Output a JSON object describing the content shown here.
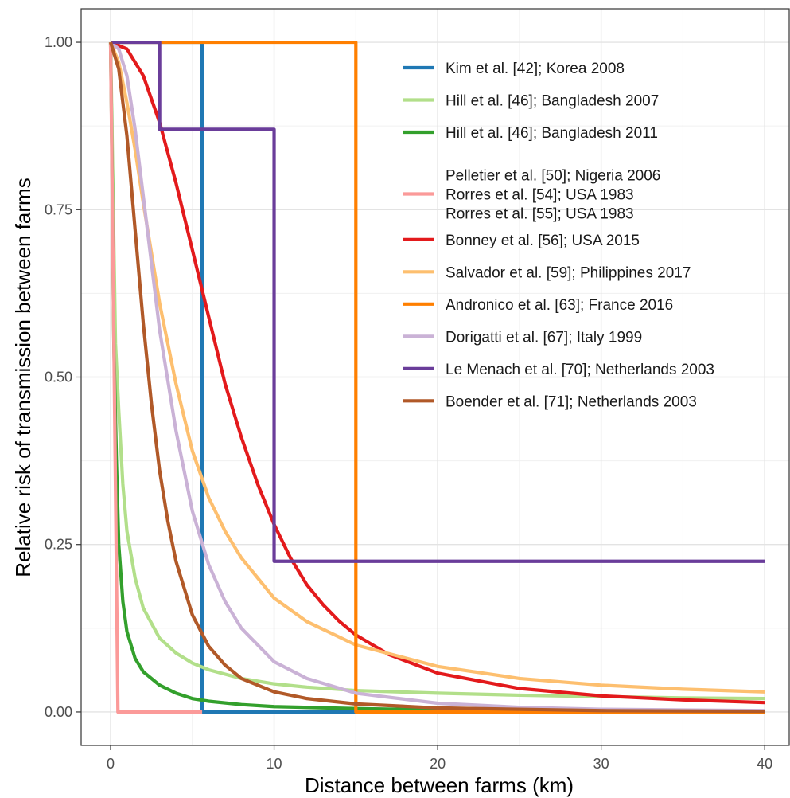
{
  "chart_data": {
    "type": "line",
    "title": "",
    "xlabel": "Distance between farms (km)",
    "ylabel": "Relative risk of transmission between farms",
    "xlim": [
      -1.8,
      41.5
    ],
    "ylim": [
      -0.05,
      1.05
    ],
    "x_ticks": [
      0,
      10,
      20,
      30,
      40
    ],
    "x_tick_labels": [
      "0",
      "10",
      "20",
      "30",
      "40"
    ],
    "y_ticks": [
      0,
      0.25,
      0.5,
      0.75,
      1.0
    ],
    "y_tick_labels": [
      "0.00",
      "0.25",
      "0.50",
      "0.75",
      "1.00"
    ],
    "x_minor_ticks": [
      5,
      15,
      25,
      35
    ],
    "y_minor_ticks": [
      0.125,
      0.375,
      0.625,
      0.875
    ],
    "grid": true,
    "legend_position": "top-right",
    "series": [
      {
        "name": "Kim et al. [42]; Korea 2008",
        "color": "#1f78b4",
        "points": [
          [
            0,
            1
          ],
          [
            5.6,
            1
          ],
          [
            5.6,
            0
          ],
          [
            40,
            0
          ]
        ]
      },
      {
        "name": "Hill et al. [46]; Bangladesh 2007",
        "color": "#b2df8a",
        "points": [
          [
            0,
            1
          ],
          [
            0.3,
            0.55
          ],
          [
            0.5,
            0.45
          ],
          [
            0.75,
            0.34
          ],
          [
            1,
            0.27
          ],
          [
            1.5,
            0.2
          ],
          [
            2,
            0.155
          ],
          [
            3,
            0.11
          ],
          [
            4,
            0.088
          ],
          [
            5,
            0.073
          ],
          [
            6,
            0.063
          ],
          [
            8,
            0.05
          ],
          [
            10,
            0.042
          ],
          [
            12,
            0.037
          ],
          [
            15,
            0.032
          ],
          [
            20,
            0.028
          ],
          [
            25,
            0.025
          ],
          [
            30,
            0.023
          ],
          [
            35,
            0.021
          ],
          [
            40,
            0.02
          ]
        ]
      },
      {
        "name": "Hill et al. [46]; Bangladesh 2011",
        "color": "#33a02c",
        "points": [
          [
            0,
            1
          ],
          [
            0.1,
            0.8
          ],
          [
            0.2,
            0.55
          ],
          [
            0.35,
            0.38
          ],
          [
            0.5,
            0.25
          ],
          [
            0.75,
            0.165
          ],
          [
            1,
            0.12
          ],
          [
            1.5,
            0.08
          ],
          [
            2,
            0.06
          ],
          [
            3,
            0.04
          ],
          [
            4,
            0.028
          ],
          [
            5,
            0.02
          ],
          [
            6,
            0.016
          ],
          [
            8,
            0.011
          ],
          [
            10,
            0.008
          ],
          [
            15,
            0.005
          ],
          [
            20,
            0.003
          ],
          [
            30,
            0.002
          ],
          [
            40,
            0.001
          ]
        ]
      },
      {
        "name": "Pelletier et al. [50]; Nigeria 2006",
        "name_line2": "Rorres et al. [54]; USA 1983",
        "name_line3": "Rorres et al. [55]; USA 1983",
        "color": "#fb9a99",
        "points": [
          [
            0,
            1
          ],
          [
            0.45,
            0
          ],
          [
            5.6,
            0
          ]
        ]
      },
      {
        "name": "Bonney et al. [56]; USA 2015",
        "color": "#e31a1c",
        "points": [
          [
            0,
            1
          ],
          [
            1,
            0.99
          ],
          [
            2,
            0.95
          ],
          [
            3,
            0.88
          ],
          [
            4,
            0.79
          ],
          [
            5,
            0.69
          ],
          [
            6,
            0.59
          ],
          [
            7,
            0.49
          ],
          [
            8,
            0.41
          ],
          [
            9,
            0.34
          ],
          [
            10,
            0.28
          ],
          [
            11,
            0.23
          ],
          [
            12,
            0.19
          ],
          [
            13,
            0.16
          ],
          [
            14,
            0.135
          ],
          [
            15,
            0.115
          ],
          [
            17,
            0.086
          ],
          [
            20,
            0.058
          ],
          [
            25,
            0.035
          ],
          [
            30,
            0.024
          ],
          [
            35,
            0.018
          ],
          [
            40,
            0.014
          ]
        ]
      },
      {
        "name": "Salvador et al. [59]; Philippines 2017",
        "color": "#fdbf6f",
        "points": [
          [
            0,
            1
          ],
          [
            0.5,
            0.97
          ],
          [
            1,
            0.91
          ],
          [
            1.5,
            0.84
          ],
          [
            2,
            0.76
          ],
          [
            3,
            0.61
          ],
          [
            4,
            0.49
          ],
          [
            5,
            0.39
          ],
          [
            6,
            0.32
          ],
          [
            7,
            0.27
          ],
          [
            8,
            0.23
          ],
          [
            10,
            0.17
          ],
          [
            12,
            0.135
          ],
          [
            15,
            0.1
          ],
          [
            20,
            0.068
          ],
          [
            25,
            0.05
          ],
          [
            30,
            0.04
          ],
          [
            35,
            0.034
          ],
          [
            40,
            0.03
          ]
        ]
      },
      {
        "name": "Andronico et al. [63]; France 2016",
        "color": "#ff7f00",
        "points": [
          [
            0,
            1
          ],
          [
            15,
            1
          ],
          [
            15,
            0
          ],
          [
            40,
            0
          ]
        ]
      },
      {
        "name": "Dorigatti et al. [67]; Italy 1999",
        "color": "#cab2d6",
        "points": [
          [
            0,
            1
          ],
          [
            0.5,
            0.99
          ],
          [
            1,
            0.95
          ],
          [
            1.5,
            0.87
          ],
          [
            2,
            0.77
          ],
          [
            2.5,
            0.67
          ],
          [
            3,
            0.57
          ],
          [
            4,
            0.42
          ],
          [
            5,
            0.3
          ],
          [
            6,
            0.22
          ],
          [
            7,
            0.165
          ],
          [
            8,
            0.125
          ],
          [
            10,
            0.075
          ],
          [
            12,
            0.05
          ],
          [
            15,
            0.028
          ],
          [
            20,
            0.013
          ],
          [
            25,
            0.007
          ],
          [
            30,
            0.004
          ],
          [
            40,
            0.002
          ]
        ]
      },
      {
        "name": "Le Menach et al. [70]; Netherlands 2003",
        "color": "#6a3d9a",
        "points": [
          [
            0,
            1
          ],
          [
            3,
            1
          ],
          [
            3,
            0.87
          ],
          [
            10,
            0.87
          ],
          [
            10,
            0.225
          ],
          [
            40,
            0.225
          ]
        ]
      },
      {
        "name": "Boender et al. [71]; Netherlands 2003",
        "color": "#b15928",
        "points": [
          [
            0,
            1
          ],
          [
            0.5,
            0.96
          ],
          [
            1,
            0.86
          ],
          [
            1.5,
            0.72
          ],
          [
            2,
            0.58
          ],
          [
            2.5,
            0.46
          ],
          [
            3,
            0.36
          ],
          [
            3.5,
            0.285
          ],
          [
            4,
            0.225
          ],
          [
            5,
            0.145
          ],
          [
            6,
            0.098
          ],
          [
            7,
            0.07
          ],
          [
            8,
            0.05
          ],
          [
            10,
            0.03
          ],
          [
            12,
            0.02
          ],
          [
            15,
            0.012
          ],
          [
            20,
            0.006
          ],
          [
            30,
            0.002
          ],
          [
            40,
            0.001
          ]
        ]
      }
    ]
  }
}
